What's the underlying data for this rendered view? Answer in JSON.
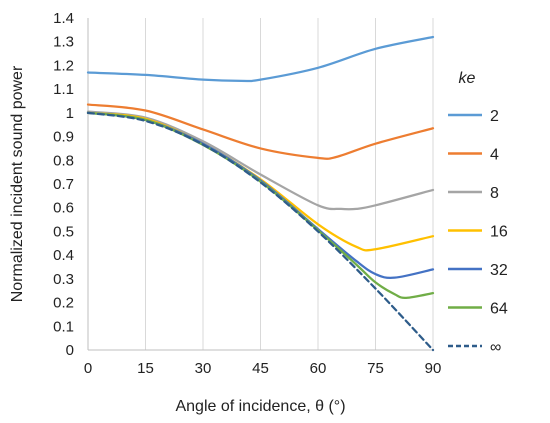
{
  "chart_data": {
    "type": "line",
    "title": "",
    "xlabel": "Angle of incidence, θ (°)",
    "ylabel": "Normalized incident sound power",
    "xlim": [
      0,
      90
    ],
    "ylim": [
      0,
      1.4
    ],
    "xticks": [
      "0",
      "15",
      "30",
      "45",
      "60",
      "75",
      "90"
    ],
    "yticks": [
      "0",
      "0.1",
      "0.2",
      "0.3",
      "0.4",
      "0.5",
      "0.6",
      "0.7",
      "0.8",
      "0.9",
      "1",
      "1.1",
      "1.2",
      "1.3",
      "1.4"
    ],
    "grid": "vertical",
    "legend": {
      "title": "ke",
      "position": "right"
    },
    "series": [
      {
        "name": "2",
        "color": "#5B9BD5",
        "dash": "solid",
        "x": [
          0,
          15,
          30,
          40,
          45,
          60,
          75,
          90
        ],
        "y": [
          1.17,
          1.16,
          1.14,
          1.135,
          1.14,
          1.19,
          1.27,
          1.32
        ]
      },
      {
        "name": "4",
        "color": "#ED7D31",
        "dash": "solid",
        "x": [
          0,
          15,
          30,
          45,
          60,
          65,
          75,
          90
        ],
        "y": [
          1.035,
          1.01,
          0.93,
          0.85,
          0.81,
          0.815,
          0.87,
          0.935
        ]
      },
      {
        "name": "8",
        "color": "#A5A5A5",
        "dash": "solid",
        "x": [
          0,
          15,
          30,
          45,
          60,
          66,
          70,
          75,
          90
        ],
        "y": [
          1.005,
          0.98,
          0.88,
          0.74,
          0.61,
          0.595,
          0.595,
          0.61,
          0.675
        ]
      },
      {
        "name": "16",
        "color": "#FFC000",
        "dash": "solid",
        "x": [
          0,
          15,
          30,
          45,
          60,
          70,
          75,
          90
        ],
        "y": [
          1.0,
          0.975,
          0.87,
          0.72,
          0.53,
          0.435,
          0.425,
          0.48
        ]
      },
      {
        "name": "32",
        "color": "#4472C4",
        "dash": "solid",
        "x": [
          0,
          15,
          30,
          45,
          60,
          70,
          75,
          80,
          90
        ],
        "y": [
          1.0,
          0.97,
          0.87,
          0.715,
          0.51,
          0.375,
          0.32,
          0.305,
          0.34
        ]
      },
      {
        "name": "64",
        "color": "#70AD47",
        "dash": "solid",
        "x": [
          0,
          15,
          30,
          45,
          60,
          70,
          75,
          80,
          83,
          90
        ],
        "y": [
          1.0,
          0.97,
          0.865,
          0.71,
          0.505,
          0.36,
          0.285,
          0.235,
          0.22,
          0.24
        ]
      },
      {
        "name": "∞",
        "color": "#2E5C8A",
        "dash": "dashed",
        "x": [
          0,
          15,
          30,
          45,
          60,
          75,
          90
        ],
        "y": [
          1.0,
          0.966,
          0.866,
          0.707,
          0.5,
          0.259,
          0.0
        ]
      }
    ]
  }
}
